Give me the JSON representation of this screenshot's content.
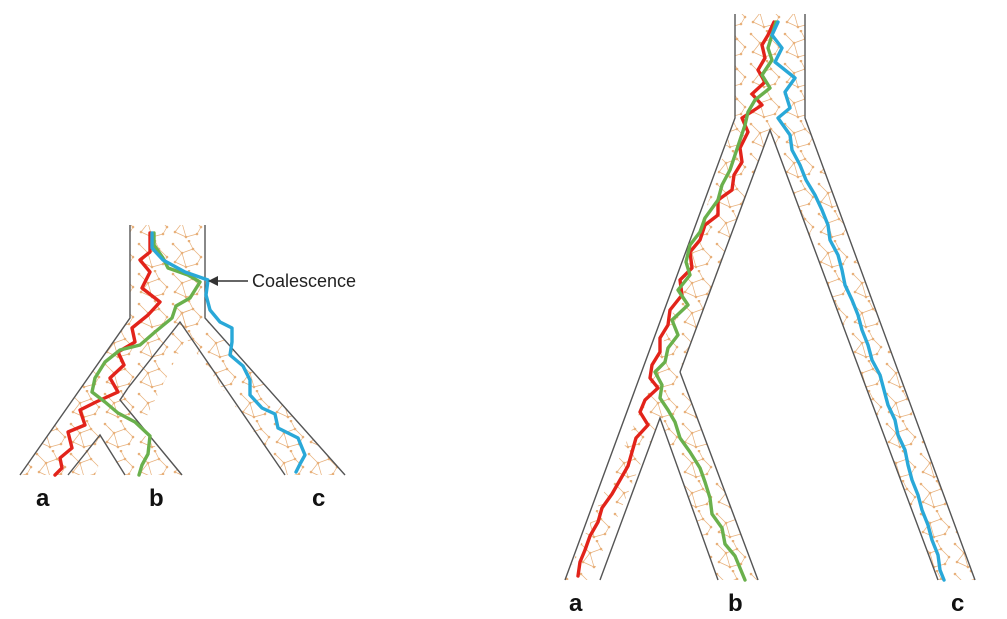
{
  "left_tree": {
    "tips": {
      "a": "a",
      "b": "b",
      "c": "c"
    },
    "annotation": "Coalescence"
  },
  "right_tree": {
    "tips": {
      "a": "a",
      "b": "b",
      "c": "c"
    }
  },
  "colors": {
    "lineage_a": "#e2231a",
    "lineage_b": "#6ab04c",
    "lineage_c": "#29a8d8",
    "population_network": "#e8b07a",
    "tube_outline": "#555555",
    "tube_fill": "#fbf4ea",
    "arrow": "#333333"
  }
}
